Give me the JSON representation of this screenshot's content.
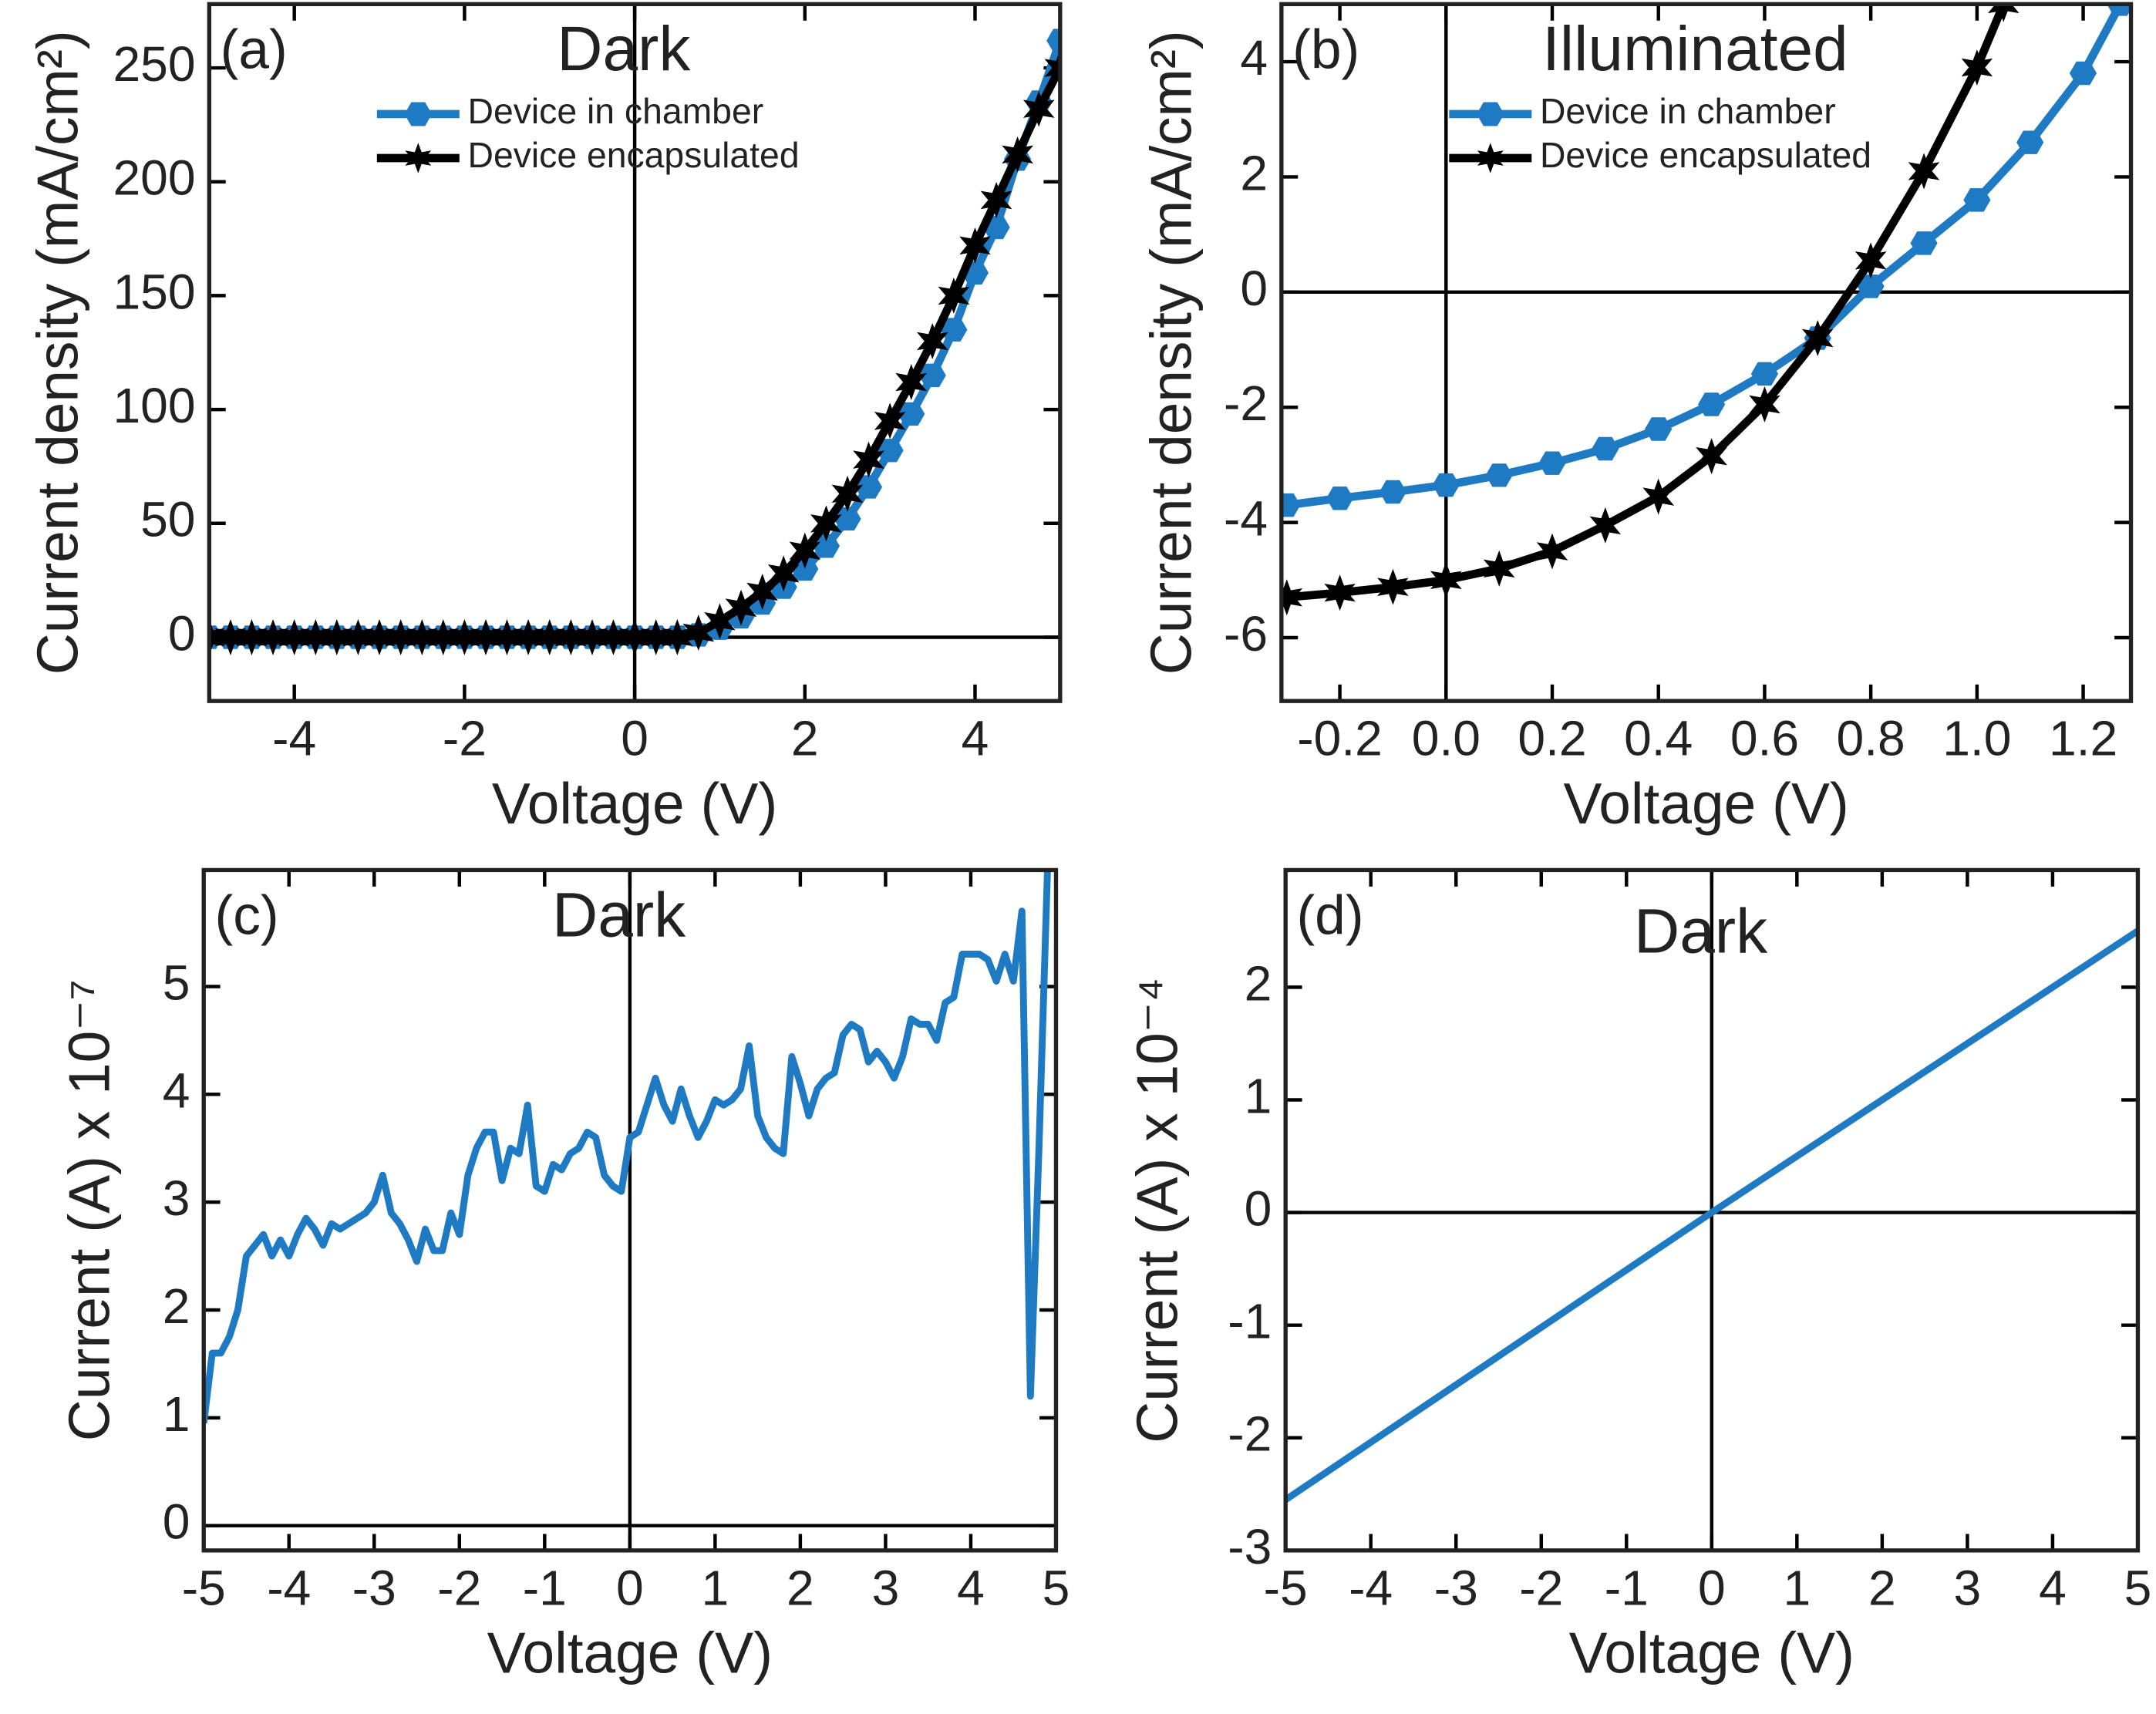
{
  "chart_data": [
    {
      "type": "line",
      "panel_label": "(a)",
      "annotation": "Dark",
      "x_label": "Voltage (V)",
      "y_label": "Current density (mA/cm²)",
      "xlim": [
        -5,
        5
      ],
      "ylim": [
        -28,
        278
      ],
      "xticks": [
        -4,
        -2,
        0,
        2,
        4
      ],
      "yticks": [
        0,
        50,
        100,
        150,
        200,
        250
      ],
      "series": [
        {
          "name": "Device in chamber",
          "color": "#1f7ac4",
          "marker": "hexagon",
          "x": [
            -5,
            -4.75,
            -4.5,
            -4.25,
            -4,
            -3.75,
            -3.5,
            -3.25,
            -3,
            -2.75,
            -2.5,
            -2.25,
            -2,
            -1.75,
            -1.5,
            -1.25,
            -1,
            -0.75,
            -0.5,
            -0.25,
            0,
            0.25,
            0.5,
            0.75,
            1,
            1.25,
            1.5,
            1.75,
            2,
            2.25,
            2.5,
            2.75,
            3,
            3.25,
            3.5,
            3.75,
            4,
            4.25,
            4.5,
            4.75,
            5
          ],
          "values": [
            0,
            0,
            0,
            0,
            0,
            0,
            0,
            0,
            0,
            0,
            0,
            0,
            0,
            0,
            0,
            0,
            0,
            0,
            0,
            0,
            0,
            0,
            0,
            1,
            4,
            9,
            15,
            22,
            30,
            40,
            52,
            66,
            82,
            98,
            115,
            135,
            160,
            180,
            210,
            235,
            262
          ]
        },
        {
          "name": "Device encapsulated",
          "color": "#000000",
          "marker": "star",
          "x": [
            -5,
            -4.75,
            -4.5,
            -4.25,
            -4,
            -3.75,
            -3.5,
            -3.25,
            -3,
            -2.75,
            -2.5,
            -2.25,
            -2,
            -1.75,
            -1.5,
            -1.25,
            -1,
            -0.75,
            -0.5,
            -0.25,
            0,
            0.25,
            0.5,
            0.75,
            1,
            1.25,
            1.5,
            1.75,
            2,
            2.25,
            2.5,
            2.75,
            3,
            3.25,
            3.5,
            3.75,
            4,
            4.25,
            4.5,
            4.75,
            5
          ],
          "values": [
            0,
            0,
            0,
            0,
            0,
            0,
            0,
            0,
            0,
            0,
            0,
            0,
            0,
            0,
            0,
            0,
            0,
            0,
            0,
            0,
            0,
            0,
            0,
            2,
            7,
            13,
            20,
            28,
            38,
            50,
            63,
            78,
            95,
            112,
            130,
            150,
            172,
            192,
            212,
            232,
            250
          ]
        }
      ]
    },
    {
      "type": "line",
      "panel_label": "(b)",
      "annotation": "Illuminated",
      "x_label": "Voltage (V)",
      "y_label": "Current density (mA/cm²)",
      "xlim": [
        -0.31,
        1.29
      ],
      "ylim": [
        -7.1,
        5
      ],
      "xticks": [
        -0.2,
        {
          "value": 0,
          "label": "0.0"
        },
        0.2,
        0.4,
        0.6,
        0.8,
        {
          "value": 1,
          "label": "1.0"
        },
        1.2
      ],
      "yticks": [
        -6,
        -4,
        -2,
        0,
        2,
        4
      ],
      "series": [
        {
          "name": "Device in chamber",
          "color": "#1f7ac4",
          "marker": "hexagon",
          "x": [
            -0.3,
            -0.2,
            -0.1,
            0,
            0.1,
            0.2,
            0.3,
            0.4,
            0.5,
            0.6,
            0.7,
            0.8,
            0.9,
            1,
            1.1,
            1.2,
            1.27
          ],
          "values": [
            -3.7,
            -3.58,
            -3.47,
            -3.35,
            -3.18,
            -2.97,
            -2.72,
            -2.38,
            -1.95,
            -1.42,
            -0.8,
            0.1,
            0.85,
            1.6,
            2.6,
            3.8,
            5
          ]
        },
        {
          "name": "Device encapsulated",
          "color": "#000000",
          "marker": "star",
          "x": [
            -0.3,
            -0.2,
            -0.1,
            0,
            0.1,
            0.2,
            0.3,
            0.4,
            0.5,
            0.6,
            0.7,
            0.8,
            0.9,
            1,
            1.05
          ],
          "values": [
            -5.3,
            -5.22,
            -5.12,
            -5,
            -4.8,
            -4.5,
            -4.05,
            -3.55,
            -2.85,
            -1.95,
            -0.8,
            0.55,
            2.1,
            3.9,
            5
          ]
        }
      ]
    },
    {
      "type": "line",
      "panel_label": "(c)",
      "annotation": "Dark",
      "x_label": "Voltage (V)",
      "y_label": "Current (A) x 10⁻⁷",
      "xlim": [
        -5,
        5
      ],
      "ylim": [
        -0.23,
        6.08
      ],
      "xticks": [
        -5,
        -4,
        -3,
        -2,
        -1,
        0,
        1,
        2,
        3,
        4,
        5
      ],
      "yticks": [
        0,
        1,
        2,
        3,
        4,
        5
      ],
      "series": [
        {
          "color": "#1f7ac4",
          "x": [
            -5,
            -4.9,
            -4.8,
            -4.7,
            -4.6,
            -4.5,
            -4.4,
            -4.3,
            -4.2,
            -4.1,
            -4,
            -3.9,
            -3.8,
            -3.7,
            -3.6,
            -3.5,
            -3.4,
            -3.3,
            -3.2,
            -3.1,
            -3,
            -2.9,
            -2.8,
            -2.7,
            -2.6,
            -2.5,
            -2.4,
            -2.3,
            -2.2,
            -2.1,
            -2,
            -1.9,
            -1.8,
            -1.7,
            -1.6,
            -1.5,
            -1.4,
            -1.3,
            -1.2,
            -1.1,
            -1,
            -0.9,
            -0.8,
            -0.7,
            -0.6,
            -0.5,
            -0.4,
            -0.3,
            -0.2,
            -0.1,
            0,
            0.1,
            0.2,
            0.3,
            0.4,
            0.5,
            0.6,
            0.7,
            0.8,
            0.9,
            1,
            1.1,
            1.2,
            1.3,
            1.4,
            1.5,
            1.6,
            1.7,
            1.8,
            1.9,
            2,
            2.1,
            2.2,
            2.3,
            2.4,
            2.5,
            2.6,
            2.7,
            2.8,
            2.9,
            3,
            3.1,
            3.2,
            3.3,
            3.4,
            3.5,
            3.6,
            3.7,
            3.8,
            3.9,
            4,
            4.1,
            4.2,
            4.3,
            4.4,
            4.5,
            4.6,
            4.7,
            4.8,
            4.9
          ],
          "values": [
            0.95,
            1.6,
            1.6,
            1.75,
            2,
            2.5,
            2.6,
            2.7,
            2.5,
            2.65,
            2.5,
            2.7,
            2.85,
            2.75,
            2.6,
            2.8,
            2.75,
            2.8,
            2.85,
            2.9,
            3,
            3.25,
            2.9,
            2.8,
            2.65,
            2.45,
            2.75,
            2.55,
            2.55,
            2.9,
            2.7,
            3.25,
            3.5,
            3.65,
            3.65,
            3.2,
            3.5,
            3.45,
            3.9,
            3.15,
            3.1,
            3.35,
            3.3,
            3.45,
            3.5,
            3.65,
            3.6,
            3.25,
            3.15,
            3.1,
            3.6,
            3.65,
            3.9,
            4.15,
            3.9,
            3.75,
            4.05,
            3.8,
            3.6,
            3.75,
            3.95,
            3.9,
            3.95,
            4.05,
            4.45,
            3.8,
            3.6,
            3.5,
            3.45,
            4.35,
            4.1,
            3.8,
            4.05,
            4.15,
            4.2,
            4.55,
            4.65,
            4.6,
            4.3,
            4.4,
            4.3,
            4.15,
            4.35,
            4.7,
            4.65,
            4.65,
            4.5,
            4.85,
            4.9,
            5.3,
            5.3,
            5.3,
            5.25,
            5.05,
            5.3,
            5.05,
            5.7,
            1.2,
            3.5,
            6.08
          ]
        }
      ]
    },
    {
      "type": "line",
      "panel_label": "(d)",
      "annotation": "Dark",
      "x_label": "Voltage (V)",
      "y_label": "Current (A) x 10⁻⁴",
      "xlim": [
        -5,
        5
      ],
      "ylim": [
        -3,
        3.04
      ],
      "xticks": [
        -5,
        -4,
        -3,
        -2,
        -1,
        0,
        1,
        2,
        3,
        4,
        5
      ],
      "yticks": [
        -3,
        -2,
        -1,
        0,
        1,
        2
      ],
      "series": [
        {
          "color": "#1f7ac4",
          "x": [
            -5,
            0,
            5
          ],
          "values": [
            -2.55,
            0,
            2.5
          ]
        }
      ]
    }
  ]
}
